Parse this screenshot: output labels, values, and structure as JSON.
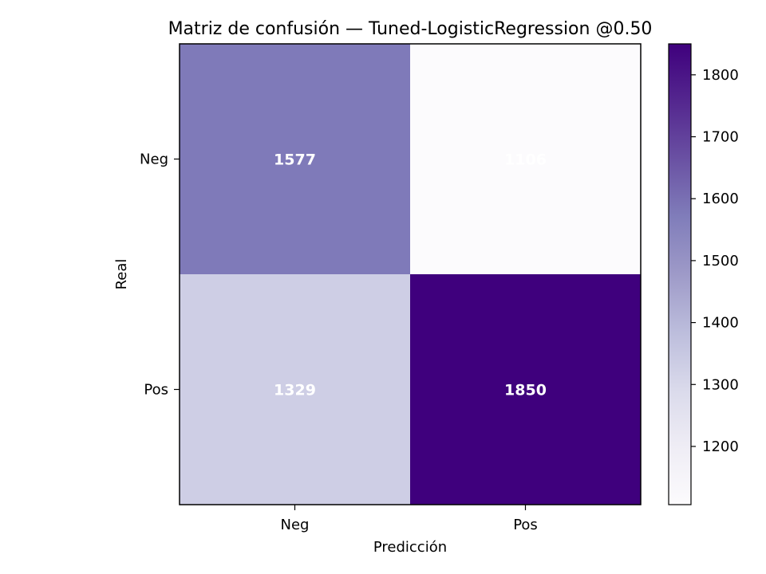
{
  "chart_data": {
    "type": "heatmap",
    "title": "Matriz de confusión — Tuned-LogisticRegression @0.50",
    "xlabel": "Predicción",
    "ylabel": "Real",
    "x_categories": [
      "Neg",
      "Pos"
    ],
    "y_categories": [
      "Neg",
      "Pos"
    ],
    "values": [
      [
        1577,
        1106
      ],
      [
        1329,
        1850
      ]
    ],
    "value_labels": [
      "1577",
      "1106",
      "1329",
      "1850"
    ],
    "colorbar": {
      "range": [
        1106,
        1850
      ],
      "ticks": [
        1200,
        1300,
        1400,
        1500,
        1600,
        1700,
        1800
      ],
      "tick_labels": [
        "1200",
        "1300",
        "1400",
        "1500",
        "1600",
        "1700",
        "1800"
      ]
    },
    "colormap": [
      "#fcfbfd",
      "#efedf5",
      "#dadaeb",
      "#bcbddc",
      "#9e9ac8",
      "#807dba",
      "#6a51a3",
      "#54278f",
      "#3f007d"
    ],
    "cell_text_color": "#ffffff",
    "grid": false
  }
}
